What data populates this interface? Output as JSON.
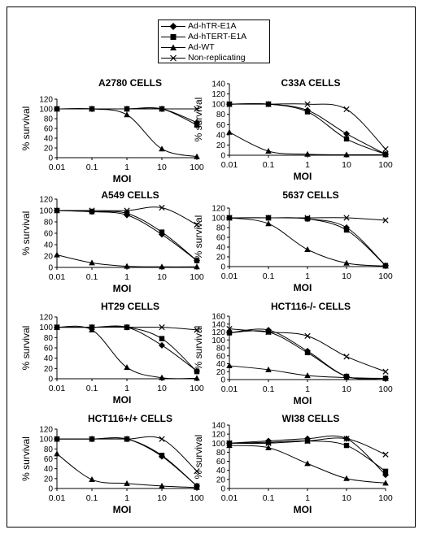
{
  "legend": {
    "items": [
      {
        "label": "Ad-hTR-E1A",
        "marker": "diamond"
      },
      {
        "label": "Ad-hTERT-E1A",
        "marker": "square"
      },
      {
        "label": "Ad-WT",
        "marker": "triangle"
      },
      {
        "label": "Non-replicating",
        "marker": "cross"
      }
    ]
  },
  "chart_data": [
    {
      "type": "line",
      "title": "A2780 CELLS",
      "xlabel": "MOI",
      "ylabel": "% survival",
      "xscale": "log",
      "x": [
        0.01,
        0.1,
        1,
        10,
        100
      ],
      "xticks": [
        "0.01",
        "0.1",
        "1",
        "10",
        "100"
      ],
      "ylim": [
        0,
        120
      ],
      "yticks": [
        0,
        20,
        40,
        60,
        80,
        100,
        120
      ],
      "series": [
        {
          "name": "Ad-hTR-E1A",
          "marker": "diamond",
          "values": [
            100,
            100,
            100,
            100,
            72
          ]
        },
        {
          "name": "Ad-hTERT-E1A",
          "marker": "square",
          "values": [
            100,
            100,
            100,
            100,
            67
          ]
        },
        {
          "name": "Ad-WT",
          "marker": "triangle",
          "values": [
            100,
            100,
            88,
            18,
            2
          ]
        },
        {
          "name": "Non-replicating",
          "marker": "cross",
          "values": [
            100,
            100,
            100,
            100,
            100
          ]
        }
      ]
    },
    {
      "type": "line",
      "title": "C33A CELLS",
      "xlabel": "MOI",
      "ylabel": "% survival",
      "xscale": "log",
      "x": [
        0.01,
        0.1,
        1,
        10,
        100
      ],
      "xticks": [
        "0.01",
        "0.1",
        "1",
        "10",
        "100"
      ],
      "ylim": [
        0,
        140
      ],
      "yticks": [
        0,
        20,
        40,
        60,
        80,
        100,
        120,
        140
      ],
      "series": [
        {
          "name": "Ad-hTR-E1A",
          "marker": "diamond",
          "values": [
            100,
            100,
            88,
            42,
            2
          ]
        },
        {
          "name": "Ad-hTERT-E1A",
          "marker": "square",
          "values": [
            100,
            100,
            85,
            32,
            2
          ]
        },
        {
          "name": "Ad-WT",
          "marker": "triangle",
          "values": [
            45,
            8,
            2,
            1,
            1
          ]
        },
        {
          "name": "Non-replicating",
          "marker": "cross",
          "values": [
            100,
            100,
            100,
            90,
            12
          ]
        }
      ]
    },
    {
      "type": "line",
      "title": "A549 CELLS",
      "xlabel": "MOI",
      "ylabel": "% survival",
      "xscale": "log",
      "x": [
        0.01,
        0.1,
        1,
        10,
        100
      ],
      "xticks": [
        "0.01",
        "0.1",
        "1",
        "10",
        "100"
      ],
      "ylim": [
        0,
        120
      ],
      "yticks": [
        0,
        20,
        40,
        60,
        80,
        100,
        120
      ],
      "series": [
        {
          "name": "Ad-hTR-E1A",
          "marker": "diamond",
          "values": [
            100,
            98,
            92,
            58,
            12
          ]
        },
        {
          "name": "Ad-hTERT-E1A",
          "marker": "square",
          "values": [
            100,
            98,
            95,
            62,
            12
          ]
        },
        {
          "name": "Ad-WT",
          "marker": "triangle",
          "values": [
            22,
            8,
            2,
            1,
            1
          ]
        },
        {
          "name": "Non-replicating",
          "marker": "cross",
          "values": [
            100,
            100,
            100,
            105,
            75
          ]
        }
      ]
    },
    {
      "type": "line",
      "title": "5637 CELLS",
      "xlabel": "MOI",
      "ylabel": "% survival",
      "xscale": "log",
      "x": [
        0.01,
        0.1,
        1,
        10,
        100
      ],
      "xticks": [
        "0.01",
        "0.1",
        "1",
        "10",
        "100"
      ],
      "ylim": [
        0,
        120
      ],
      "yticks": [
        0,
        20,
        40,
        60,
        80,
        100,
        120
      ],
      "series": [
        {
          "name": "Ad-hTR-E1A",
          "marker": "diamond",
          "values": [
            100,
            100,
            98,
            80,
            2
          ]
        },
        {
          "name": "Ad-hTERT-E1A",
          "marker": "square",
          "values": [
            100,
            100,
            98,
            75,
            2
          ]
        },
        {
          "name": "Ad-WT",
          "marker": "triangle",
          "values": [
            100,
            88,
            35,
            7,
            1
          ]
        },
        {
          "name": "Non-replicating",
          "marker": "cross",
          "values": [
            100,
            100,
            100,
            100,
            95
          ]
        }
      ]
    },
    {
      "type": "line",
      "title": "HT29 CELLS",
      "xlabel": "MOI",
      "ylabel": "% survival",
      "xscale": "log",
      "x": [
        0.01,
        0.1,
        1,
        10,
        100
      ],
      "xticks": [
        "0.01",
        "0.1",
        "1",
        "10",
        "100"
      ],
      "ylim": [
        0,
        120
      ],
      "yticks": [
        0,
        20,
        40,
        60,
        80,
        100,
        120
      ],
      "series": [
        {
          "name": "Ad-hTR-E1A",
          "marker": "diamond",
          "values": [
            100,
            100,
            100,
            65,
            15
          ]
        },
        {
          "name": "Ad-hTERT-E1A",
          "marker": "square",
          "values": [
            100,
            100,
            100,
            78,
            14
          ]
        },
        {
          "name": "Ad-WT",
          "marker": "triangle",
          "values": [
            100,
            95,
            22,
            2,
            1
          ]
        },
        {
          "name": "Non-replicating",
          "marker": "cross",
          "values": [
            100,
            100,
            100,
            100,
            95
          ]
        }
      ]
    },
    {
      "type": "line",
      "title": "HCT116-/- CELLS",
      "xlabel": "MOI",
      "ylabel": "% survival",
      "xscale": "log",
      "x": [
        0.01,
        0.1,
        1,
        10,
        100
      ],
      "xticks": [
        "0.01",
        "0.1",
        "1",
        "10",
        "100"
      ],
      "ylim": [
        0,
        160
      ],
      "yticks": [
        0,
        20,
        40,
        60,
        80,
        100,
        120,
        140,
        160
      ],
      "series": [
        {
          "name": "Ad-hTR-E1A",
          "marker": "diamond",
          "values": [
            118,
            125,
            72,
            8,
            3
          ]
        },
        {
          "name": "Ad-hTERT-E1A",
          "marker": "square",
          "values": [
            118,
            120,
            68,
            8,
            3
          ]
        },
        {
          "name": "Ad-WT",
          "marker": "triangle",
          "values": [
            35,
            25,
            10,
            5,
            3
          ]
        },
        {
          "name": "Non-replicating",
          "marker": "cross",
          "values": [
            128,
            120,
            110,
            58,
            20
          ]
        }
      ]
    },
    {
      "type": "line",
      "title": "HCT116+/+ CELLS",
      "xlabel": "MOI",
      "ylabel": "% survival",
      "xscale": "log",
      "x": [
        0.01,
        0.1,
        1,
        10,
        100
      ],
      "xticks": [
        "0.01",
        "0.1",
        "1",
        "10",
        "100"
      ],
      "ylim": [
        0,
        120
      ],
      "yticks": [
        0,
        20,
        40,
        60,
        80,
        100,
        120
      ],
      "series": [
        {
          "name": "Ad-hTR-E1A",
          "marker": "diamond",
          "values": [
            100,
            100,
            100,
            65,
            5
          ]
        },
        {
          "name": "Ad-hTERT-E1A",
          "marker": "square",
          "values": [
            100,
            100,
            100,
            67,
            5
          ]
        },
        {
          "name": "Ad-WT",
          "marker": "triangle",
          "values": [
            70,
            18,
            10,
            5,
            2
          ]
        },
        {
          "name": "Non-replicating",
          "marker": "cross",
          "values": [
            100,
            100,
            100,
            100,
            35
          ]
        }
      ]
    },
    {
      "type": "line",
      "title": "WI38 CELLS",
      "xlabel": "MOI",
      "ylabel": "% survival",
      "xscale": "log",
      "x": [
        0.01,
        0.1,
        1,
        10,
        100
      ],
      "xticks": [
        "0.01",
        "0.1",
        "1",
        "10",
        "100"
      ],
      "ylim": [
        0,
        140
      ],
      "yticks": [
        0,
        20,
        40,
        60,
        80,
        100,
        120,
        140
      ],
      "series": [
        {
          "name": "Ad-hTR-E1A",
          "marker": "diamond",
          "values": [
            100,
            105,
            110,
            110,
            30
          ]
        },
        {
          "name": "Ad-hTERT-E1A",
          "marker": "square",
          "values": [
            100,
            102,
            105,
            95,
            38
          ]
        },
        {
          "name": "Ad-WT",
          "marker": "triangle",
          "values": [
            95,
            90,
            55,
            22,
            12
          ]
        },
        {
          "name": "Non-replicating",
          "marker": "cross",
          "values": [
            100,
            100,
            105,
            110,
            75
          ]
        }
      ]
    }
  ]
}
